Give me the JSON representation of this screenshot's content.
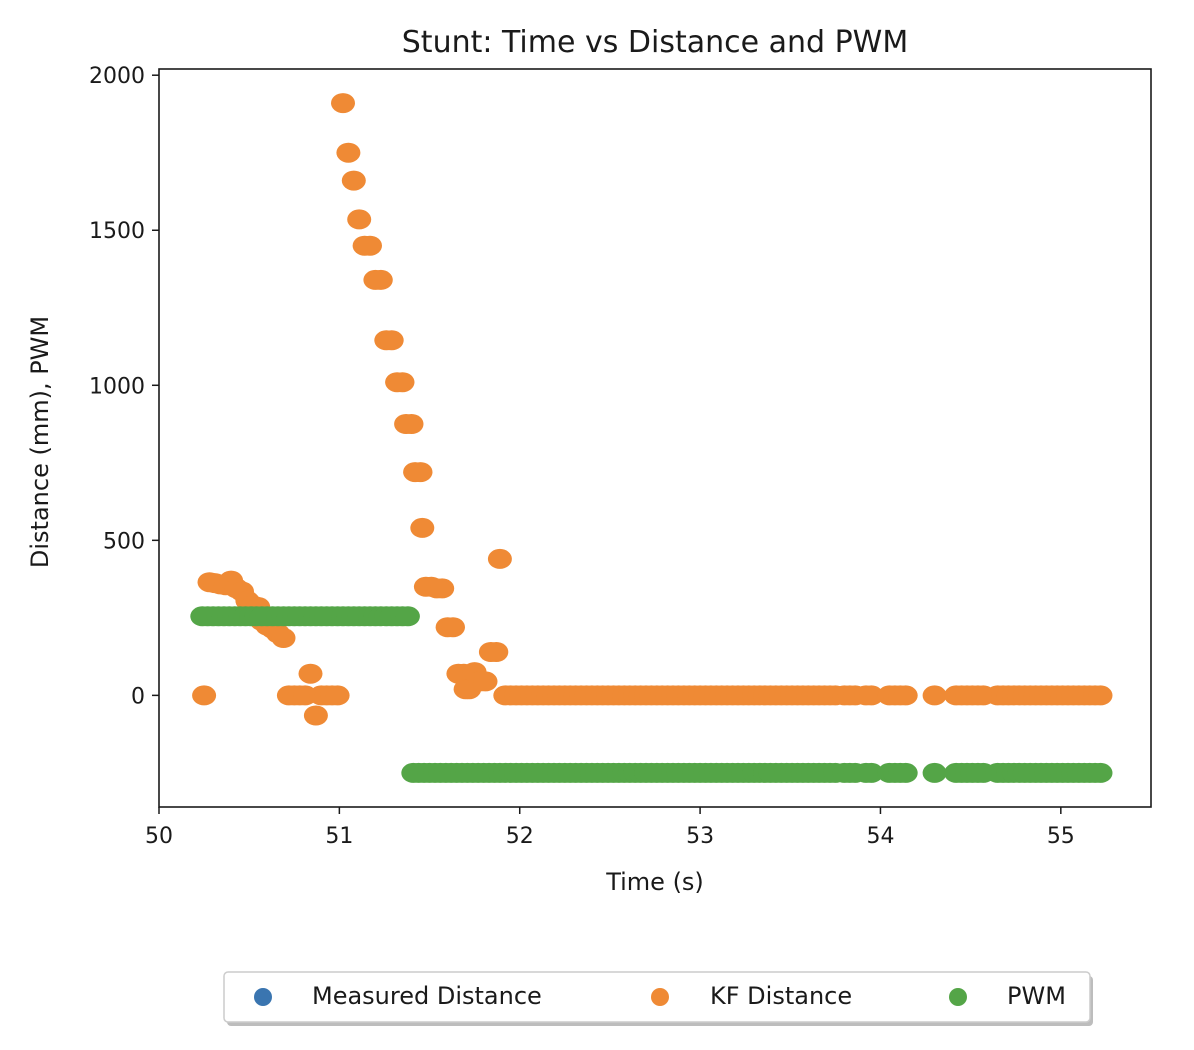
{
  "chart_data": {
    "type": "scatter",
    "title": "Stunt: Time vs Distance and PWM",
    "xlabel": "Time (s)",
    "ylabel": "Distance (mm), PWM",
    "xlim": [
      50.0,
      55.5
    ],
    "ylim": [
      -360,
      2020
    ],
    "xticks": [
      50,
      51,
      52,
      53,
      54,
      55
    ],
    "yticks": [
      0,
      500,
      1000,
      1500,
      2000
    ],
    "x_tick_labels": [
      "50",
      "51",
      "52",
      "53",
      "54",
      "55"
    ],
    "y_tick_labels": [
      "0",
      "500",
      "1000",
      "1500",
      "2000"
    ],
    "grid": false,
    "legend_position": "bottom-center",
    "series": [
      {
        "name": "Measured Distance",
        "color": "#3a75b0",
        "points": []
      },
      {
        "name": "KF Distance",
        "color": "#ef8a35",
        "points": [
          [
            50.25,
            0
          ],
          [
            50.28,
            365
          ],
          [
            50.31,
            362
          ],
          [
            50.34,
            358
          ],
          [
            50.37,
            355
          ],
          [
            50.4,
            370
          ],
          [
            50.43,
            345
          ],
          [
            50.46,
            335
          ],
          [
            50.49,
            305
          ],
          [
            50.52,
            290
          ],
          [
            50.55,
            285
          ],
          [
            50.57,
            240
          ],
          [
            50.6,
            225
          ],
          [
            50.63,
            215
          ],
          [
            50.66,
            200
          ],
          [
            50.69,
            185
          ],
          [
            50.72,
            0
          ],
          [
            50.75,
            0
          ],
          [
            50.78,
            0
          ],
          [
            50.81,
            0
          ],
          [
            50.84,
            70
          ],
          [
            50.87,
            -65
          ],
          [
            50.9,
            0
          ],
          [
            50.93,
            0
          ],
          [
            50.96,
            0
          ],
          [
            50.99,
            0
          ],
          [
            51.02,
            1910
          ],
          [
            51.05,
            1750
          ],
          [
            51.08,
            1660
          ],
          [
            51.11,
            1535
          ],
          [
            51.14,
            1450
          ],
          [
            51.17,
            1450
          ],
          [
            51.2,
            1340
          ],
          [
            51.23,
            1340
          ],
          [
            51.26,
            1145
          ],
          [
            51.29,
            1145
          ],
          [
            51.32,
            1010
          ],
          [
            51.35,
            1010
          ],
          [
            51.37,
            875
          ],
          [
            51.4,
            875
          ],
          [
            51.42,
            720
          ],
          [
            51.45,
            720
          ],
          [
            51.46,
            540
          ],
          [
            51.48,
            350
          ],
          [
            51.51,
            350
          ],
          [
            51.54,
            345
          ],
          [
            51.57,
            345
          ],
          [
            51.6,
            220
          ],
          [
            51.63,
            220
          ],
          [
            51.66,
            70
          ],
          [
            51.69,
            70
          ],
          [
            51.7,
            20
          ],
          [
            51.72,
            20
          ],
          [
            51.75,
            75
          ],
          [
            51.78,
            45
          ],
          [
            51.81,
            45
          ],
          [
            51.84,
            140
          ],
          [
            51.87,
            140
          ],
          [
            51.89,
            440
          ],
          [
            51.92,
            0
          ],
          [
            51.95,
            0
          ],
          [
            51.98,
            0
          ],
          [
            52.01,
            0
          ],
          [
            52.04,
            0
          ],
          [
            52.07,
            0
          ],
          [
            52.1,
            0
          ],
          [
            52.13,
            0
          ],
          [
            52.16,
            0
          ],
          [
            52.19,
            0
          ],
          [
            52.22,
            0
          ],
          [
            52.25,
            0
          ],
          [
            52.28,
            0
          ],
          [
            52.31,
            0
          ],
          [
            52.34,
            0
          ],
          [
            52.37,
            0
          ],
          [
            52.4,
            0
          ],
          [
            52.43,
            0
          ],
          [
            52.46,
            0
          ],
          [
            52.49,
            0
          ],
          [
            52.52,
            0
          ],
          [
            52.55,
            0
          ],
          [
            52.58,
            0
          ],
          [
            52.61,
            0
          ],
          [
            52.64,
            0
          ],
          [
            52.67,
            0
          ],
          [
            52.7,
            0
          ],
          [
            52.73,
            0
          ],
          [
            52.76,
            0
          ],
          [
            52.79,
            0
          ],
          [
            52.82,
            0
          ],
          [
            52.85,
            0
          ],
          [
            52.88,
            0
          ],
          [
            52.91,
            0
          ],
          [
            52.94,
            0
          ],
          [
            52.97,
            0
          ],
          [
            53.0,
            0
          ],
          [
            53.03,
            0
          ],
          [
            53.06,
            0
          ],
          [
            53.09,
            0
          ],
          [
            53.12,
            0
          ],
          [
            53.15,
            0
          ],
          [
            53.18,
            0
          ],
          [
            53.21,
            0
          ],
          [
            53.24,
            0
          ],
          [
            53.27,
            0
          ],
          [
            53.3,
            0
          ],
          [
            53.33,
            0
          ],
          [
            53.36,
            0
          ],
          [
            53.39,
            0
          ],
          [
            53.42,
            0
          ],
          [
            53.45,
            0
          ],
          [
            53.48,
            0
          ],
          [
            53.51,
            0
          ],
          [
            53.54,
            0
          ],
          [
            53.57,
            0
          ],
          [
            53.6,
            0
          ],
          [
            53.63,
            0
          ],
          [
            53.66,
            0
          ],
          [
            53.69,
            0
          ],
          [
            53.72,
            0
          ],
          [
            53.75,
            0
          ],
          [
            53.8,
            0
          ],
          [
            53.83,
            0
          ],
          [
            53.86,
            0
          ],
          [
            53.92,
            0
          ],
          [
            53.95,
            0
          ],
          [
            54.05,
            0
          ],
          [
            54.08,
            0
          ],
          [
            54.11,
            0
          ],
          [
            54.14,
            0
          ],
          [
            54.3,
            0
          ],
          [
            54.42,
            0
          ],
          [
            54.45,
            0
          ],
          [
            54.48,
            0
          ],
          [
            54.51,
            0
          ],
          [
            54.54,
            0
          ],
          [
            54.57,
            0
          ],
          [
            54.65,
            0
          ],
          [
            54.68,
            0
          ],
          [
            54.71,
            0
          ],
          [
            54.74,
            0
          ],
          [
            54.77,
            0
          ],
          [
            54.8,
            0
          ],
          [
            54.83,
            0
          ],
          [
            54.86,
            0
          ],
          [
            54.89,
            0
          ],
          [
            54.92,
            0
          ],
          [
            54.95,
            0
          ],
          [
            54.98,
            0
          ],
          [
            55.01,
            0
          ],
          [
            55.04,
            0
          ],
          [
            55.07,
            0
          ],
          [
            55.1,
            0
          ],
          [
            55.13,
            0
          ],
          [
            55.16,
            0
          ],
          [
            55.19,
            0
          ],
          [
            55.22,
            0
          ]
        ]
      },
      {
        "name": "PWM",
        "color": "#54a547",
        "points": [
          [
            50.24,
            255
          ],
          [
            50.27,
            255
          ],
          [
            50.3,
            255
          ],
          [
            50.33,
            255
          ],
          [
            50.36,
            255
          ],
          [
            50.39,
            255
          ],
          [
            50.42,
            255
          ],
          [
            50.45,
            255
          ],
          [
            50.48,
            255
          ],
          [
            50.51,
            255
          ],
          [
            50.54,
            255
          ],
          [
            50.57,
            255
          ],
          [
            50.6,
            255
          ],
          [
            50.63,
            255
          ],
          [
            50.66,
            255
          ],
          [
            50.69,
            255
          ],
          [
            50.72,
            255
          ],
          [
            50.75,
            255
          ],
          [
            50.78,
            255
          ],
          [
            50.81,
            255
          ],
          [
            50.84,
            255
          ],
          [
            50.87,
            255
          ],
          [
            50.9,
            255
          ],
          [
            50.93,
            255
          ],
          [
            50.96,
            255
          ],
          [
            50.99,
            255
          ],
          [
            51.02,
            255
          ],
          [
            51.05,
            255
          ],
          [
            51.08,
            255
          ],
          [
            51.11,
            255
          ],
          [
            51.14,
            255
          ],
          [
            51.17,
            255
          ],
          [
            51.2,
            255
          ],
          [
            51.23,
            255
          ],
          [
            51.26,
            255
          ],
          [
            51.29,
            255
          ],
          [
            51.32,
            255
          ],
          [
            51.35,
            255
          ],
          [
            51.38,
            255
          ],
          [
            51.41,
            -250
          ],
          [
            51.44,
            -250
          ],
          [
            51.47,
            -250
          ],
          [
            51.5,
            -250
          ],
          [
            51.53,
            -250
          ],
          [
            51.56,
            -250
          ],
          [
            51.59,
            -250
          ],
          [
            51.62,
            -250
          ],
          [
            51.65,
            -250
          ],
          [
            51.68,
            -250
          ],
          [
            51.71,
            -250
          ],
          [
            51.74,
            -250
          ],
          [
            51.77,
            -250
          ],
          [
            51.8,
            -250
          ],
          [
            51.83,
            -250
          ],
          [
            51.86,
            -250
          ],
          [
            51.89,
            -250
          ],
          [
            51.92,
            -250
          ],
          [
            51.95,
            -250
          ],
          [
            51.98,
            -250
          ],
          [
            52.01,
            -250
          ],
          [
            52.04,
            -250
          ],
          [
            52.07,
            -250
          ],
          [
            52.1,
            -250
          ],
          [
            52.13,
            -250
          ],
          [
            52.16,
            -250
          ],
          [
            52.19,
            -250
          ],
          [
            52.22,
            -250
          ],
          [
            52.25,
            -250
          ],
          [
            52.28,
            -250
          ],
          [
            52.31,
            -250
          ],
          [
            52.34,
            -250
          ],
          [
            52.37,
            -250
          ],
          [
            52.4,
            -250
          ],
          [
            52.43,
            -250
          ],
          [
            52.46,
            -250
          ],
          [
            52.49,
            -250
          ],
          [
            52.52,
            -250
          ],
          [
            52.55,
            -250
          ],
          [
            52.58,
            -250
          ],
          [
            52.61,
            -250
          ],
          [
            52.64,
            -250
          ],
          [
            52.67,
            -250
          ],
          [
            52.7,
            -250
          ],
          [
            52.73,
            -250
          ],
          [
            52.76,
            -250
          ],
          [
            52.79,
            -250
          ],
          [
            52.82,
            -250
          ],
          [
            52.85,
            -250
          ],
          [
            52.88,
            -250
          ],
          [
            52.91,
            -250
          ],
          [
            52.94,
            -250
          ],
          [
            52.97,
            -250
          ],
          [
            53.0,
            -250
          ],
          [
            53.03,
            -250
          ],
          [
            53.06,
            -250
          ],
          [
            53.09,
            -250
          ],
          [
            53.12,
            -250
          ],
          [
            53.15,
            -250
          ],
          [
            53.18,
            -250
          ],
          [
            53.21,
            -250
          ],
          [
            53.24,
            -250
          ],
          [
            53.27,
            -250
          ],
          [
            53.3,
            -250
          ],
          [
            53.33,
            -250
          ],
          [
            53.36,
            -250
          ],
          [
            53.39,
            -250
          ],
          [
            53.42,
            -250
          ],
          [
            53.45,
            -250
          ],
          [
            53.48,
            -250
          ],
          [
            53.51,
            -250
          ],
          [
            53.54,
            -250
          ],
          [
            53.57,
            -250
          ],
          [
            53.6,
            -250
          ],
          [
            53.63,
            -250
          ],
          [
            53.66,
            -250
          ],
          [
            53.69,
            -250
          ],
          [
            53.72,
            -250
          ],
          [
            53.75,
            -250
          ],
          [
            53.8,
            -250
          ],
          [
            53.83,
            -250
          ],
          [
            53.86,
            -250
          ],
          [
            53.92,
            -250
          ],
          [
            53.95,
            -250
          ],
          [
            54.05,
            -250
          ],
          [
            54.08,
            -250
          ],
          [
            54.11,
            -250
          ],
          [
            54.14,
            -250
          ],
          [
            54.3,
            -250
          ],
          [
            54.42,
            -250
          ],
          [
            54.45,
            -250
          ],
          [
            54.48,
            -250
          ],
          [
            54.51,
            -250
          ],
          [
            54.54,
            -250
          ],
          [
            54.57,
            -250
          ],
          [
            54.65,
            -250
          ],
          [
            54.68,
            -250
          ],
          [
            54.71,
            -250
          ],
          [
            54.74,
            -250
          ],
          [
            54.77,
            -250
          ],
          [
            54.8,
            -250
          ],
          [
            54.83,
            -250
          ],
          [
            54.86,
            -250
          ],
          [
            54.89,
            -250
          ],
          [
            54.92,
            -250
          ],
          [
            54.95,
            -250
          ],
          [
            54.98,
            -250
          ],
          [
            55.01,
            -250
          ],
          [
            55.04,
            -250
          ],
          [
            55.07,
            -250
          ],
          [
            55.1,
            -250
          ],
          [
            55.13,
            -250
          ],
          [
            55.16,
            -250
          ],
          [
            55.19,
            -250
          ],
          [
            55.22,
            -250
          ]
        ]
      }
    ]
  }
}
